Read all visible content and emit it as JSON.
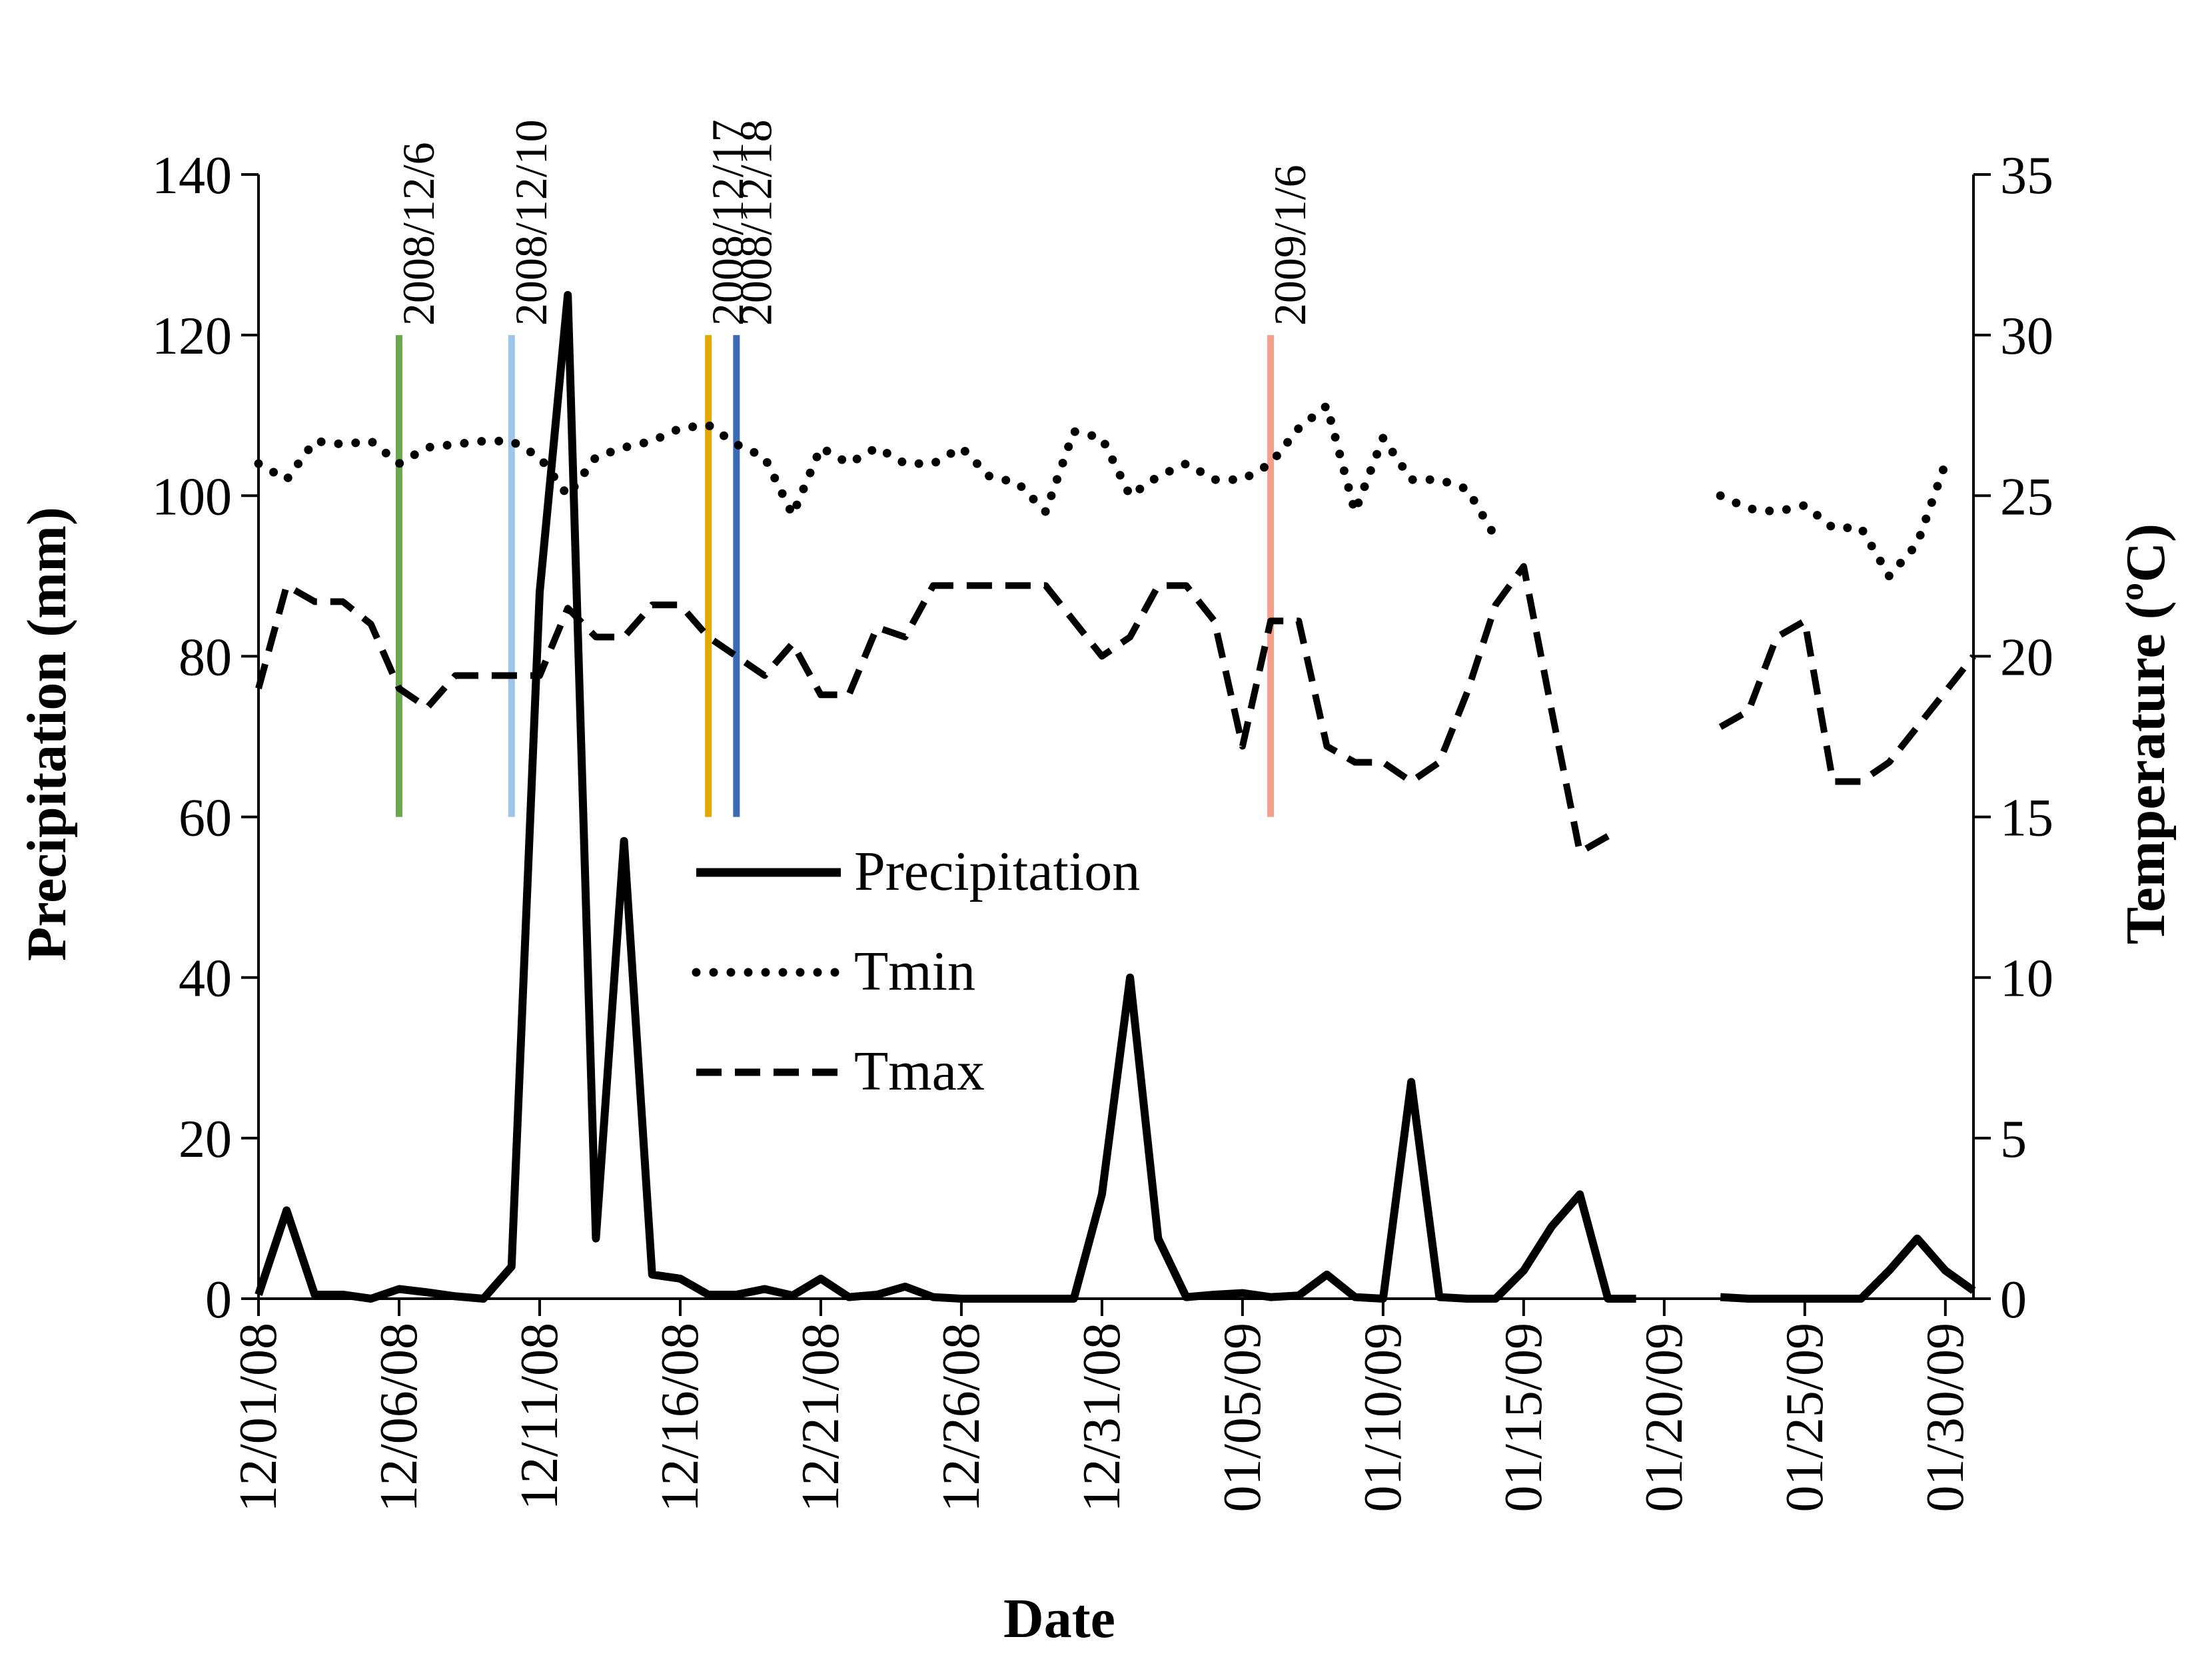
{
  "chart_data": {
    "type": "line",
    "xlabel": "Date",
    "ylabel_left": "Precipitation (mm)",
    "ylabel_right": "Temperature (ºC)",
    "ylim_left": [
      0,
      140
    ],
    "ylim_right": [
      0,
      35
    ],
    "yticks_left": [
      0,
      20,
      40,
      60,
      80,
      100,
      120,
      140
    ],
    "yticks_right": [
      0,
      5,
      10,
      15,
      20,
      25,
      30,
      35
    ],
    "x_range_days": [
      0,
      61
    ],
    "x_tick_days": [
      0,
      5,
      10,
      15,
      20,
      25,
      30,
      35,
      40,
      45,
      50,
      55,
      60
    ],
    "x_tick_labels": [
      "12/01/08",
      "12/06/08",
      "12/11/08",
      "12/16/08",
      "12/21/08",
      "12/26/08",
      "12/31/08",
      "01/05/09",
      "01/10/09",
      "01/15/09",
      "01/20/09",
      "01/25/09",
      "01/30/09"
    ],
    "series": [
      {
        "name": "Precipitation",
        "axis": "left",
        "style": "solid",
        "color": "#000000",
        "segments": [
          [
            [
              0,
              0.5
            ],
            [
              1,
              11
            ],
            [
              2,
              0.5
            ],
            [
              3,
              0.5
            ],
            [
              4,
              0
            ],
            [
              5,
              1.2
            ],
            [
              6,
              0.8
            ],
            [
              7,
              0.3
            ],
            [
              8,
              0
            ],
            [
              9,
              4
            ],
            [
              10,
              88
            ],
            [
              11,
              125
            ],
            [
              12,
              7.5
            ],
            [
              13,
              57
            ],
            [
              14,
              3
            ],
            [
              15,
              2.5
            ],
            [
              16,
              0.5
            ],
            [
              17,
              0.5
            ],
            [
              18,
              1.2
            ],
            [
              19,
              0.4
            ],
            [
              20,
              2.5
            ],
            [
              21,
              0.2
            ],
            [
              22,
              0.5
            ],
            [
              23,
              1.5
            ],
            [
              24,
              0.2
            ],
            [
              25,
              0
            ],
            [
              26,
              0
            ],
            [
              27,
              0
            ],
            [
              28,
              0
            ],
            [
              29,
              0
            ],
            [
              30,
              13
            ],
            [
              31,
              40
            ],
            [
              32,
              7.5
            ],
            [
              33,
              0.2
            ],
            [
              34,
              0.5
            ],
            [
              35,
              0.7
            ],
            [
              36,
              0.2
            ],
            [
              37,
              0.4
            ],
            [
              38,
              3
            ],
            [
              39,
              0.2
            ],
            [
              40,
              0
            ],
            [
              41,
              27
            ],
            [
              42,
              0.2
            ],
            [
              43,
              0
            ],
            [
              44,
              0
            ],
            [
              45,
              3.5
            ],
            [
              46,
              9
            ],
            [
              47,
              13
            ],
            [
              48,
              0
            ],
            [
              49,
              0
            ]
          ],
          [
            [
              52,
              0.2
            ],
            [
              53,
              0
            ],
            [
              54,
              0
            ],
            [
              55,
              0
            ],
            [
              56,
              0
            ],
            [
              57,
              0
            ],
            [
              58,
              3.5
            ],
            [
              59,
              7.5
            ],
            [
              60,
              3.5
            ],
            [
              61,
              1
            ]
          ]
        ]
      },
      {
        "name": "Tmin",
        "axis": "right",
        "style": "dotted",
        "color": "#000000",
        "segments": [
          [
            [
              0,
              26
            ],
            [
              1,
              25.5
            ],
            [
              2,
              26.7
            ],
            [
              3,
              26.6
            ],
            [
              4,
              26.7
            ],
            [
              5,
              26
            ],
            [
              6,
              26.5
            ],
            [
              7,
              26.6
            ],
            [
              8,
              26.7
            ],
            [
              9,
              26.7
            ],
            [
              10,
              26.2
            ],
            [
              11,
              25
            ],
            [
              12,
              26.2
            ],
            [
              13,
              26.5
            ],
            [
              14,
              26.7
            ],
            [
              15,
              27.1
            ],
            [
              16,
              27.2
            ],
            [
              17,
              26.6
            ],
            [
              18,
              26.2
            ],
            [
              19,
              24.4
            ],
            [
              20,
              26.5
            ],
            [
              21,
              26
            ],
            [
              22,
              26.5
            ],
            [
              23,
              26
            ],
            [
              24,
              26
            ],
            [
              25,
              26.5
            ],
            [
              26,
              25.6
            ],
            [
              27,
              25.4
            ],
            [
              28,
              24.5
            ],
            [
              29,
              27
            ],
            [
              30,
              26.8
            ],
            [
              31,
              25
            ],
            [
              32,
              25.6
            ],
            [
              33,
              26
            ],
            [
              34,
              25.5
            ],
            [
              35,
              25.5
            ],
            [
              36,
              26
            ],
            [
              37,
              27.1
            ],
            [
              38,
              27.8
            ],
            [
              39,
              24.5
            ],
            [
              40,
              26.8
            ],
            [
              41,
              25.5
            ],
            [
              42,
              25.5
            ],
            [
              43,
              25.2
            ],
            [
              44,
              23.7
            ]
          ],
          [
            [
              52,
              25
            ],
            [
              53,
              24.6
            ],
            [
              54,
              24.5
            ],
            [
              55,
              24.7
            ],
            [
              56,
              24
            ],
            [
              57,
              24
            ],
            [
              58,
              22.5
            ],
            [
              59,
              23.5
            ],
            [
              60,
              26
            ]
          ]
        ]
      },
      {
        "name": "Tmax",
        "axis": "right",
        "style": "dashed",
        "color": "#000000",
        "segments": [
          [
            [
              0,
              19
            ],
            [
              1,
              22.2
            ],
            [
              2,
              21.7
            ],
            [
              3,
              21.7
            ],
            [
              4,
              21
            ],
            [
              5,
              19
            ],
            [
              6,
              18.4
            ],
            [
              7,
              19.4
            ],
            [
              8,
              19.4
            ],
            [
              9,
              19.4
            ],
            [
              10,
              19.4
            ],
            [
              11,
              21.5
            ],
            [
              12,
              20.6
            ],
            [
              13,
              20.6
            ],
            [
              14,
              21.6
            ],
            [
              15,
              21.6
            ],
            [
              16,
              20.6
            ],
            [
              17,
              20
            ],
            [
              18,
              19.4
            ],
            [
              19,
              20.4
            ],
            [
              20,
              18.8
            ],
            [
              21,
              18.8
            ],
            [
              22,
              20.9
            ],
            [
              23,
              20.6
            ],
            [
              24,
              22.2
            ],
            [
              25,
              22.2
            ],
            [
              26,
              22.2
            ],
            [
              27,
              22.2
            ],
            [
              28,
              22.2
            ],
            [
              29,
              21.1
            ],
            [
              30,
              20
            ],
            [
              31,
              20.6
            ],
            [
              32,
              22.2
            ],
            [
              33,
              22.2
            ],
            [
              34,
              21.1
            ],
            [
              35,
              17.2
            ],
            [
              36,
              21.1
            ],
            [
              37,
              21.1
            ],
            [
              38,
              17.2
            ],
            [
              39,
              16.7
            ],
            [
              40,
              16.7
            ],
            [
              41,
              16.1
            ],
            [
              42,
              16.7
            ],
            [
              43,
              18.9
            ],
            [
              44,
              21.6
            ],
            [
              45,
              22.8
            ],
            [
              46,
              18.3
            ],
            [
              47,
              13.9
            ],
            [
              48,
              14.4
            ]
          ],
          [
            [
              52,
              17.8
            ],
            [
              53,
              18.3
            ],
            [
              54,
              20.6
            ],
            [
              55,
              21.1
            ],
            [
              56,
              16.1
            ],
            [
              57,
              16.1
            ],
            [
              58,
              16.7
            ],
            [
              59,
              17.8
            ],
            [
              60,
              18.9
            ],
            [
              61,
              20
            ]
          ]
        ]
      }
    ],
    "events": [
      {
        "label": "2008/12/6",
        "day": 5,
        "color": "#6aa84f",
        "y_bottom": 60,
        "y_top": 120
      },
      {
        "label": "2008/12/10",
        "day": 9,
        "color": "#9fc5e8",
        "y_bottom": 60,
        "y_top": 120
      },
      {
        "label": "2008/12/17",
        "day": 16,
        "color": "#e0a800",
        "y_bottom": 60,
        "y_top": 120
      },
      {
        "label": "2008/12/18",
        "day": 17,
        "color": "#3d6bb3",
        "y_bottom": 60,
        "y_top": 120
      },
      {
        "label": "2009/1/6",
        "day": 36,
        "color": "#f4a18c",
        "y_bottom": 60,
        "y_top": 120
      }
    ],
    "legend": {
      "placement": "center",
      "entries": [
        "Precipitation",
        "Tmin",
        "Tmax"
      ]
    }
  }
}
